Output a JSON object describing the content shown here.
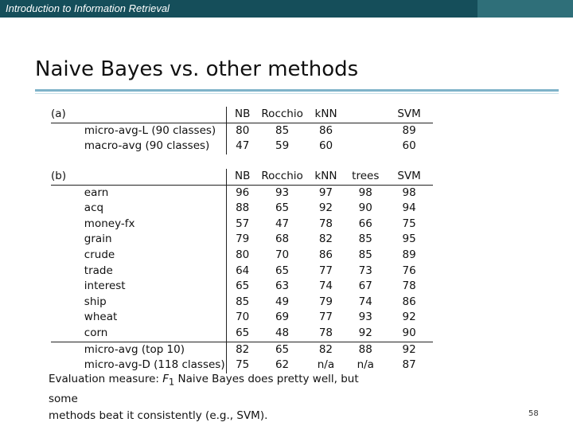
{
  "header": {
    "course_title": "Introduction to Information Retrieval"
  },
  "slide": {
    "title": "Naive Bayes vs. other methods",
    "page_number": "58"
  },
  "table_a": {
    "label": "(a)",
    "columns": [
      "NB",
      "Rocchio",
      "kNN",
      "",
      "SVM"
    ],
    "rows": [
      {
        "name": "micro-avg-L (90 classes)",
        "values": [
          "80",
          "85",
          "86",
          "",
          "89"
        ]
      },
      {
        "name": "macro-avg (90 classes)",
        "values": [
          "47",
          "59",
          "60",
          "",
          "60"
        ]
      }
    ]
  },
  "table_b": {
    "label": "(b)",
    "columns": [
      "NB",
      "Rocchio",
      "kNN",
      "trees",
      "SVM"
    ],
    "rows": [
      {
        "name": "earn",
        "values": [
          "96",
          "93",
          "97",
          "98",
          "98"
        ]
      },
      {
        "name": "acq",
        "values": [
          "88",
          "65",
          "92",
          "90",
          "94"
        ]
      },
      {
        "name": "money-fx",
        "values": [
          "57",
          "47",
          "78",
          "66",
          "75"
        ]
      },
      {
        "name": "grain",
        "values": [
          "79",
          "68",
          "82",
          "85",
          "95"
        ]
      },
      {
        "name": "crude",
        "values": [
          "80",
          "70",
          "86",
          "85",
          "89"
        ]
      },
      {
        "name": "trade",
        "values": [
          "64",
          "65",
          "77",
          "73",
          "76"
        ]
      },
      {
        "name": "interest",
        "values": [
          "65",
          "63",
          "74",
          "67",
          "78"
        ]
      },
      {
        "name": "ship",
        "values": [
          "85",
          "49",
          "79",
          "74",
          "86"
        ]
      },
      {
        "name": "wheat",
        "values": [
          "70",
          "69",
          "77",
          "93",
          "92"
        ]
      },
      {
        "name": "corn",
        "values": [
          "65",
          "48",
          "78",
          "92",
          "90"
        ]
      },
      {
        "name": "micro-avg (top 10)",
        "values": [
          "82",
          "65",
          "82",
          "88",
          "92"
        ]
      },
      {
        "name": "micro-avg-D (118 classes)",
        "values": [
          "75",
          "62",
          "n/a",
          "n/a",
          "87"
        ]
      }
    ]
  },
  "note": {
    "line1_pre": "Evaluation measure: ",
    "measure_letter": "F",
    "measure_sub": "1",
    "line1_post": " Naive Bayes does pretty well, but some",
    "line2": "methods beat it consistently (e.g., SVM)."
  }
}
